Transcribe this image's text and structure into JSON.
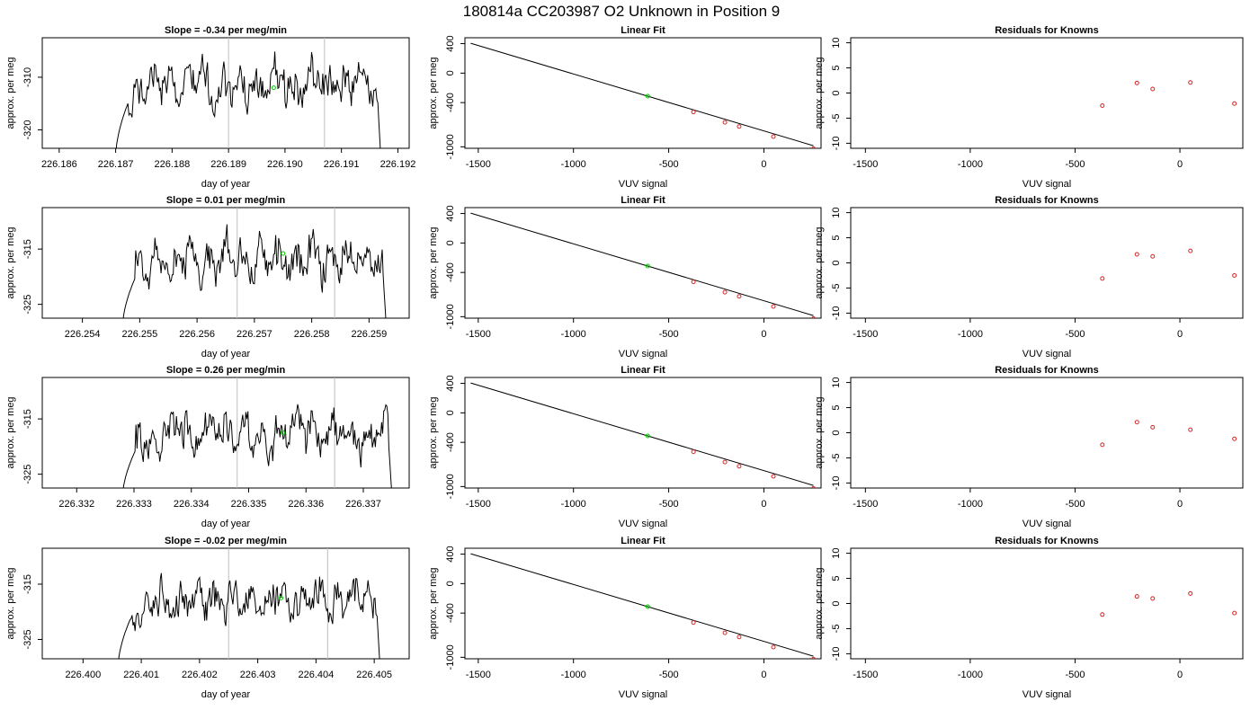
{
  "title": "180814a     CC203987   O2 Unknown in Position  9",
  "colors": {
    "trace": "#000000",
    "known_point": "#d62728",
    "unknown_point": "#00cc00",
    "cal_line": "#bebebe",
    "fit_line": "#000000"
  },
  "chart_data": [
    {
      "type": "line",
      "row": 0,
      "panel": "timeseries",
      "title": "Slope =  -0.34  per meg/min",
      "xlabel": "day of year",
      "ylabel": "approx. per meg",
      "xlim": [
        226.1857,
        226.1922
      ],
      "ylim": [
        -323.5,
        -302.5
      ],
      "xticks": [
        "226.186",
        "226.187",
        "226.188",
        "226.189",
        "226.190",
        "226.191",
        "226.192"
      ],
      "yticks": [
        "-320",
        "-310"
      ],
      "vlines": [
        226.189,
        226.1907
      ],
      "trace": {
        "start": 226.187,
        "end": 226.1917,
        "base": -311.5,
        "amp": 3.2,
        "rise": -325,
        "fall": -326,
        "seed": 1
      },
      "unknown_point": [
        226.1898,
        -312
      ]
    },
    {
      "type": "scatter",
      "row": 0,
      "panel": "fit",
      "title": "Linear Fit",
      "xlabel": "VUV signal",
      "ylabel": "approx. per meg",
      "xlim": [
        -1570,
        300
      ],
      "ylim": [
        -1020,
        480
      ],
      "xticks": [
        "-1500",
        "-1000",
        "-500",
        "0"
      ],
      "yticks": [
        "-1000",
        "-400",
        "0",
        "400"
      ],
      "line": {
        "x": [
          -1540,
          260
        ],
        "y": [
          405,
          -985
        ]
      },
      "knowns": {
        "x": [
          -370,
          -205,
          -130,
          50,
          260
        ],
        "y": [
          -527,
          -668,
          -724,
          -862,
          -1025
        ]
      },
      "unknown": {
        "x": [
          -610,
          -312
        ]
      }
    },
    {
      "type": "scatter",
      "row": 0,
      "panel": "residuals",
      "title": "Residuals for Knowns",
      "xlabel": "VUV signal",
      "ylabel": "approx. per meg",
      "xlim": [
        -1570,
        300
      ],
      "ylim": [
        -11,
        11
      ],
      "xticks": [
        "-1500",
        "-1000",
        "-500",
        "0"
      ],
      "yticks": [
        "-10",
        "-5",
        "0",
        "5",
        "10"
      ],
      "x": [
        -370,
        -205,
        -130,
        50,
        260
      ],
      "y": [
        -2.5,
        2,
        0.8,
        2.1,
        -2.1
      ]
    },
    {
      "type": "line",
      "row": 1,
      "panel": "timeseries",
      "title": "Slope =  0.01  per meg/min",
      "xlabel": "day of year",
      "ylabel": "approx. per meg",
      "xlim": [
        226.2533,
        226.2597
      ],
      "ylim": [
        -327.5,
        -307.5
      ],
      "xticks": [
        "226.254",
        "226.255",
        "226.256",
        "226.257",
        "226.258",
        "226.259"
      ],
      "yticks": [
        "-325",
        "-315"
      ],
      "vlines": [
        226.2567,
        226.2584
      ],
      "trace": {
        "start": 226.2547,
        "end": 226.2593,
        "base": -317,
        "amp": 3.0,
        "rise": -329,
        "fall": -329,
        "seed": 2
      },
      "unknown_point": [
        226.2575,
        -315.8
      ]
    },
    {
      "type": "scatter",
      "row": 1,
      "panel": "fit",
      "title": "Linear Fit",
      "xlabel": "VUV signal",
      "ylabel": "approx. per meg",
      "xlim": [
        -1570,
        300
      ],
      "ylim": [
        -1020,
        480
      ],
      "xticks": [
        "-1500",
        "-1000",
        "-500",
        "0"
      ],
      "yticks": [
        "-1000",
        "-400",
        "0",
        "400"
      ],
      "line": {
        "x": [
          -1540,
          260
        ],
        "y": [
          405,
          -985
        ]
      },
      "knowns": {
        "x": [
          -370,
          -205,
          -130,
          50,
          260
        ],
        "y": [
          -527,
          -668,
          -724,
          -862,
          -1025
        ]
      },
      "unknown": {
        "x": [
          -610,
          -312
        ]
      }
    },
    {
      "type": "scatter",
      "row": 1,
      "panel": "residuals",
      "title": "Residuals for Knowns",
      "xlabel": "VUV signal",
      "ylabel": "approx. per meg",
      "xlim": [
        -1570,
        300
      ],
      "ylim": [
        -11,
        11
      ],
      "xticks": [
        "-1500",
        "-1000",
        "-500",
        "0"
      ],
      "yticks": [
        "-10",
        "-5",
        "0",
        "5",
        "10"
      ],
      "x": [
        -370,
        -205,
        -130,
        50,
        260
      ],
      "y": [
        -3.1,
        1.7,
        1.3,
        2.4,
        -2.5
      ]
    },
    {
      "type": "line",
      "row": 2,
      "panel": "timeseries",
      "title": "Slope =  0.26  per meg/min",
      "xlabel": "day of year",
      "ylabel": "approx. per meg",
      "xlim": [
        226.3314,
        226.3378
      ],
      "ylim": [
        -327.5,
        -307.5
      ],
      "xticks": [
        "226.332",
        "226.333",
        "226.334",
        "226.335",
        "226.336",
        "226.337"
      ],
      "yticks": [
        "-325",
        "-315"
      ],
      "vlines": [
        226.3348,
        226.3365
      ],
      "trace": {
        "start": 226.3328,
        "end": 226.3375,
        "base": -317.5,
        "amp": 3.0,
        "rise": -329,
        "fall": -329,
        "seed": 3
      },
      "unknown_point": [
        226.3356,
        -317.5
      ]
    },
    {
      "type": "scatter",
      "row": 2,
      "panel": "fit",
      "title": "Linear Fit",
      "xlabel": "VUV signal",
      "ylabel": "approx. per meg",
      "xlim": [
        -1570,
        300
      ],
      "ylim": [
        -1020,
        480
      ],
      "xticks": [
        "-1500",
        "-1000",
        "-500",
        "0"
      ],
      "yticks": [
        "-1000",
        "-400",
        "0",
        "400"
      ],
      "line": {
        "x": [
          -1540,
          260
        ],
        "y": [
          405,
          -985
        ]
      },
      "knowns": {
        "x": [
          -370,
          -205,
          -130,
          50,
          260
        ],
        "y": [
          -527,
          -668,
          -724,
          -862,
          -1025
        ]
      },
      "unknown": {
        "x": [
          -610,
          -312
        ]
      }
    },
    {
      "type": "scatter",
      "row": 2,
      "panel": "residuals",
      "title": "Residuals for Knowns",
      "xlabel": "VUV signal",
      "ylabel": "approx. per meg",
      "xlim": [
        -1570,
        300
      ],
      "ylim": [
        -11,
        11
      ],
      "xticks": [
        "-1500",
        "-1000",
        "-500",
        "0"
      ],
      "yticks": [
        "-10",
        "-5",
        "0",
        "5",
        "10"
      ],
      "x": [
        -370,
        -205,
        -130,
        50,
        260
      ],
      "y": [
        -2.4,
        2.1,
        1.1,
        0.6,
        -1.2
      ]
    },
    {
      "type": "line",
      "row": 3,
      "panel": "timeseries",
      "title": "Slope =  -0.02  per meg/min",
      "xlabel": "day of year",
      "ylabel": "approx. per meg",
      "xlim": [
        226.3993,
        226.4056
      ],
      "ylim": [
        -328.5,
        -308.5
      ],
      "xticks": [
        "226.400",
        "226.401",
        "226.402",
        "226.403",
        "226.404",
        "226.405"
      ],
      "yticks": [
        "-325",
        "-315"
      ],
      "vlines": [
        226.4025,
        226.4042
      ],
      "trace": {
        "start": 226.4006,
        "end": 226.4051,
        "base": -318,
        "amp": 3.0,
        "rise": -330,
        "fall": -330,
        "seed": 4
      },
      "unknown_point": [
        226.4034,
        -317.5
      ]
    },
    {
      "type": "scatter",
      "row": 3,
      "panel": "fit",
      "title": "Linear Fit",
      "xlabel": "VUV signal",
      "ylabel": "approx. per meg",
      "xlim": [
        -1570,
        300
      ],
      "ylim": [
        -1020,
        480
      ],
      "xticks": [
        "-1500",
        "-1000",
        "-500",
        "0"
      ],
      "yticks": [
        "-1000",
        "-400",
        "0",
        "400"
      ],
      "line": {
        "x": [
          -1540,
          260
        ],
        "y": [
          405,
          -985
        ]
      },
      "knowns": {
        "x": [
          -370,
          -205,
          -130,
          50,
          260
        ],
        "y": [
          -527,
          -668,
          -724,
          -862,
          -1025
        ]
      },
      "unknown": {
        "x": [
          -610,
          -312
        ]
      }
    },
    {
      "type": "scatter",
      "row": 3,
      "panel": "residuals",
      "title": "Residuals for Knowns",
      "xlabel": "VUV signal",
      "ylabel": "approx. per meg",
      "xlim": [
        -1570,
        300
      ],
      "ylim": [
        -11,
        11
      ],
      "xticks": [
        "-1500",
        "-1000",
        "-500",
        "0"
      ],
      "yticks": [
        "-10",
        "-5",
        "0",
        "5",
        "10"
      ],
      "x": [
        -370,
        -205,
        -130,
        50,
        260
      ],
      "y": [
        -2.2,
        1.4,
        1.0,
        2.0,
        -1.9
      ]
    }
  ]
}
